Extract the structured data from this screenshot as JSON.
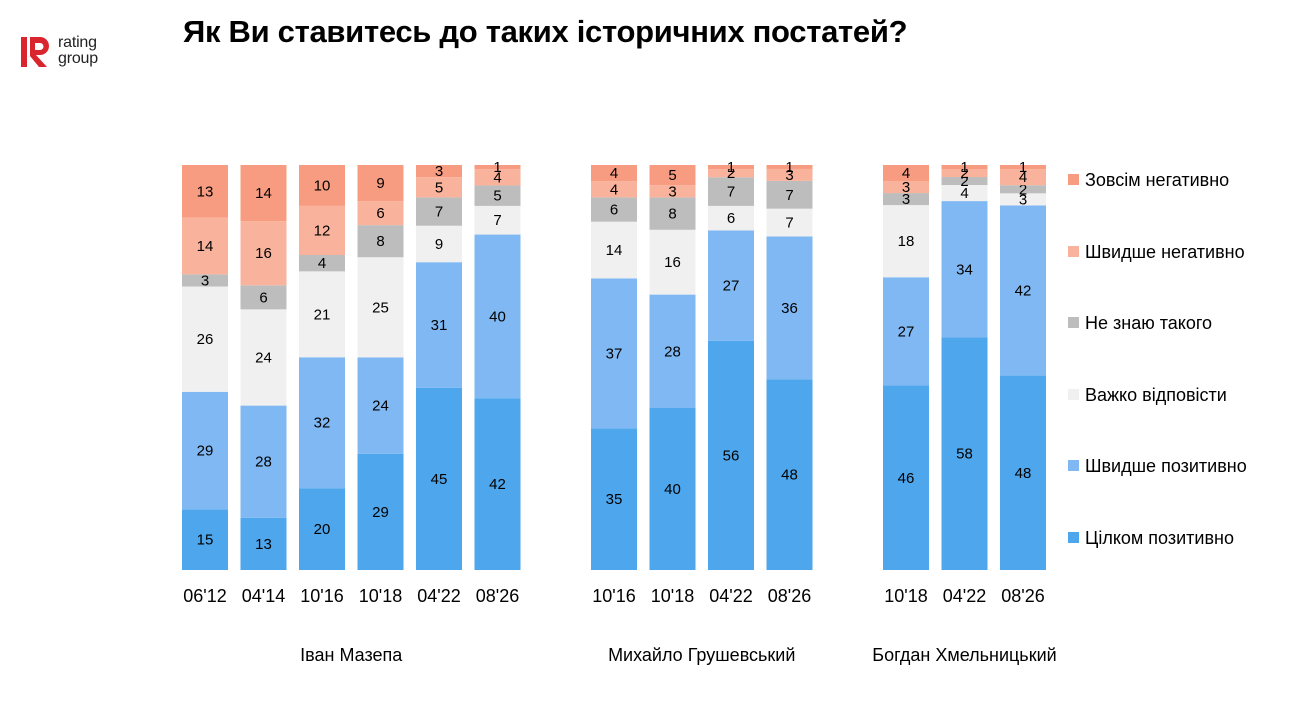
{
  "logo": {
    "line1": "rating",
    "line2": "group"
  },
  "title": "Як Ви ставитесь до таких історичних постатей?",
  "chart_data": {
    "type": "bar",
    "stacked": true,
    "ylim": [
      0,
      100
    ],
    "legend_position": "right",
    "grid": false,
    "series": [
      {
        "name": "Цілком позитивно",
        "color": "#4ea6ec"
      },
      {
        "name": "Швидше позитивно",
        "color": "#7fb8f3"
      },
      {
        "name": "Важко відповісти",
        "color": "#f0f0f0"
      },
      {
        "name": "Не знаю такого",
        "color": "#bdbdbd"
      },
      {
        "name": "Швидше негативно",
        "color": "#f9b39c"
      },
      {
        "name": "Зовсім негативно",
        "color": "#f79c81"
      }
    ],
    "legend_order": [
      "Зовсім негативно",
      "Швидше негативно",
      "Не знаю такого",
      "Важко відповісти",
      "Швидше позитивно",
      "Цілком позитивно"
    ],
    "groups": [
      {
        "name": "Іван Мазепа",
        "categories": [
          "06'12",
          "04'14",
          "10'16",
          "10'18",
          "04'22",
          "08'26"
        ],
        "values": [
          [
            15,
            29,
            26,
            3,
            14,
            13
          ],
          [
            13,
            28,
            24,
            6,
            16,
            14
          ],
          [
            20,
            32,
            21,
            4,
            12,
            10
          ],
          [
            29,
            24,
            25,
            8,
            6,
            9
          ],
          [
            45,
            31,
            9,
            7,
            5,
            3
          ],
          [
            42,
            40,
            7,
            5,
            4,
            1
          ]
        ]
      },
      {
        "name": "Михайло Грушевський",
        "categories": [
          "10'16",
          "10'18",
          "04'22",
          "08'26"
        ],
        "values": [
          [
            35,
            37,
            14,
            6,
            4,
            4
          ],
          [
            40,
            28,
            16,
            8,
            3,
            5
          ],
          [
            56,
            27,
            6,
            7,
            2,
            1
          ],
          [
            48,
            36,
            7,
            7,
            3,
            1
          ]
        ]
      },
      {
        "name": "Богдан Хмельницький",
        "categories": [
          "10'18",
          "04'22",
          "08'26"
        ],
        "values": [
          [
            46,
            27,
            18,
            3,
            3,
            4
          ],
          [
            58,
            34,
            4,
            2,
            2,
            1
          ],
          [
            48,
            42,
            3,
            2,
            4,
            1
          ]
        ]
      }
    ]
  }
}
